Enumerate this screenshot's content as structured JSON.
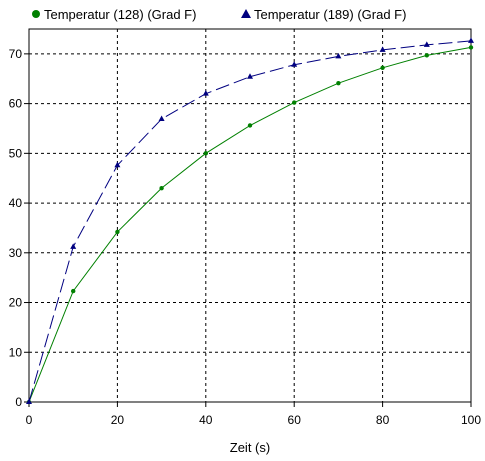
{
  "chart_data": {
    "type": "line",
    "xlabel": "Zeit (s)",
    "ylabel": "",
    "xlim": [
      0,
      100
    ],
    "ylim": [
      0,
      75
    ],
    "xticks": [
      0,
      20,
      40,
      60,
      80,
      100
    ],
    "yticks": [
      0,
      10,
      20,
      30,
      40,
      50,
      60,
      70
    ],
    "grid": true,
    "legend_position": "top",
    "series": [
      {
        "name": "Temperatur (128) (Grad F)",
        "color": "#008000",
        "marker": "circle",
        "line_style": "solid",
        "x": [
          0,
          10,
          20,
          30,
          40,
          50,
          60,
          70,
          80,
          90,
          100
        ],
        "y": [
          0,
          22.3,
          34.2,
          43.0,
          50.0,
          55.6,
          60.2,
          64.1,
          67.2,
          69.7,
          71.3
        ]
      },
      {
        "name": "Temperatur (189) (Grad F)",
        "color": "#000080",
        "marker": "triangle",
        "line_style": "dashed",
        "x": [
          0,
          10,
          20,
          30,
          40,
          50,
          60,
          70,
          80,
          90,
          100
        ],
        "y": [
          0,
          31.2,
          47.6,
          56.9,
          62.0,
          65.4,
          67.8,
          69.5,
          70.8,
          71.8,
          72.6
        ]
      }
    ]
  }
}
